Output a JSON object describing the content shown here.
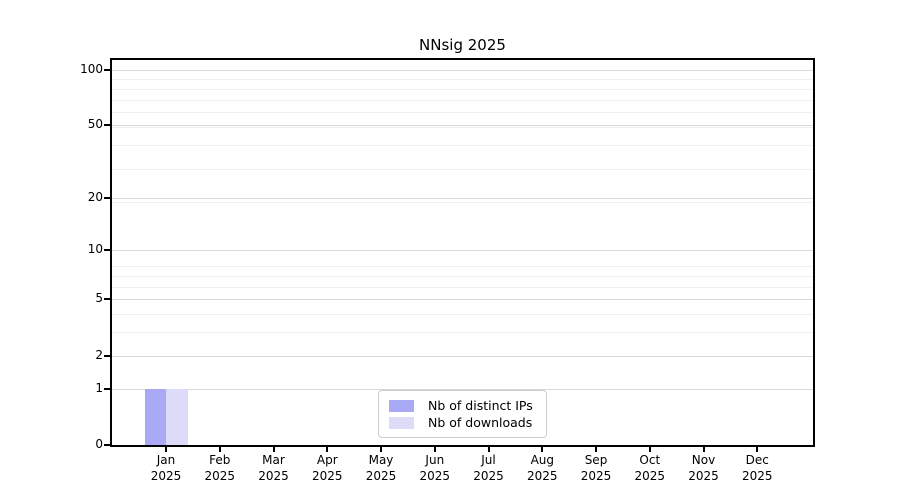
{
  "chart_data": {
    "type": "bar",
    "title": "NNsig 2025",
    "x_tick_months": [
      "Jan",
      "Feb",
      "Mar",
      "Apr",
      "May",
      "Jun",
      "Jul",
      "Aug",
      "Sep",
      "Oct",
      "Nov",
      "Dec"
    ],
    "x_tick_year": "2025",
    "series": [
      {
        "name": "Nb of distinct IPs",
        "color": "#a9a9f6",
        "values": [
          1,
          0,
          0,
          0,
          0,
          0,
          0,
          0,
          0,
          0,
          0,
          0
        ]
      },
      {
        "name": "Nb of downloads",
        "color": "#dcdcf8",
        "values": [
          1,
          0,
          0,
          0,
          0,
          0,
          0,
          0,
          0,
          0,
          0,
          0
        ]
      }
    ],
    "y_scale": "log1p",
    "y_ticks": [
      0,
      1,
      2,
      5,
      10,
      20,
      50,
      100
    ],
    "y_minor_gridlines": [
      3,
      4,
      6,
      7,
      8,
      19,
      29,
      39,
      49,
      59,
      69,
      79,
      89
    ],
    "ylim": [
      0,
      113
    ],
    "grid": "horizontal",
    "legend_position": "lower center",
    "colors": {
      "major_grid": "#d9d9d9",
      "minor_grid": "#efefef",
      "axis": "#000000",
      "background": "#ffffff"
    }
  }
}
